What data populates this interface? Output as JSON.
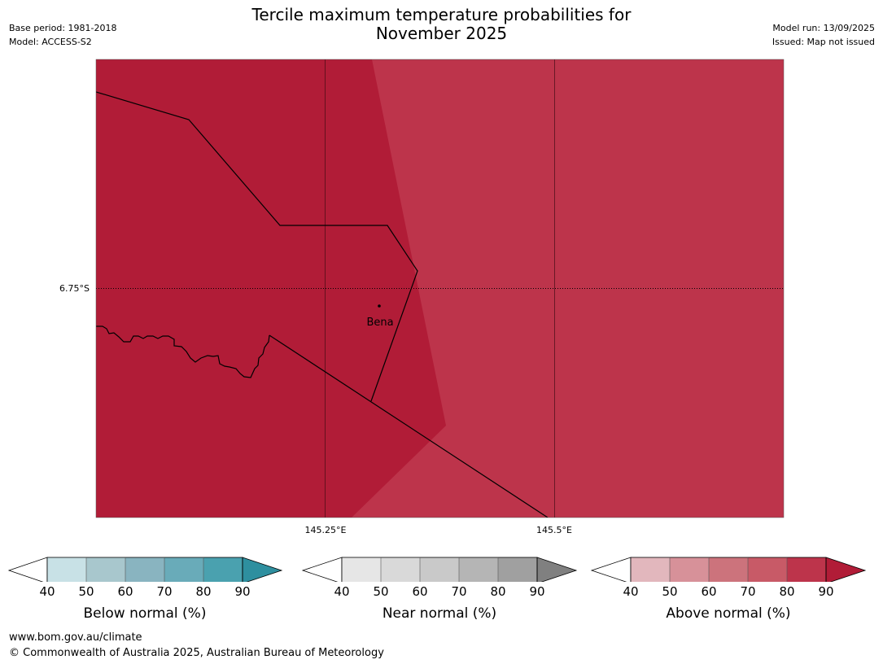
{
  "title_line1": "Tercile maximum temperature probabilities for",
  "title_line2": "November 2025",
  "base_period": "Base period: 1981-2018",
  "model": "Model: ACCESS-S2",
  "model_run": "Model run: 13/09/2025",
  "issued": "Issued: Map not issued",
  "map": {
    "lat_label": "6.75°S",
    "lon_labels": [
      "145.25°E",
      "145.5°E"
    ],
    "place": "Bena",
    "region_colors": {
      "dark": "#b11c37",
      "medium": "#bd344b"
    }
  },
  "colorbars": [
    {
      "label": "Below normal (%)",
      "ticks": [
        "40",
        "50",
        "60",
        "70",
        "80",
        "90"
      ],
      "colors": [
        "#ffffff",
        "#c8e1e6",
        "#a8c7cd",
        "#89b4c0",
        "#69abb9",
        "#4aa1af",
        "#2e8f9f"
      ]
    },
    {
      "label": "Near normal (%)",
      "ticks": [
        "40",
        "50",
        "60",
        "70",
        "80",
        "90"
      ],
      "colors": [
        "#ffffff",
        "#e6e6e6",
        "#d9d9d9",
        "#c9c9c9",
        "#b5b5b5",
        "#a0a0a0",
        "#808080"
      ]
    },
    {
      "label": "Above normal (%)",
      "ticks": [
        "40",
        "50",
        "60",
        "70",
        "80",
        "90"
      ],
      "colors": [
        "#ffffff",
        "#e2b7bd",
        "#d79199",
        "#cc737c",
        "#c85a67",
        "#bd344b",
        "#b11c37"
      ]
    }
  ],
  "footer_url": "www.bom.gov.au/climate",
  "footer_copyright": "© Commonwealth of Australia 2025, Australian Bureau of Meteorology"
}
